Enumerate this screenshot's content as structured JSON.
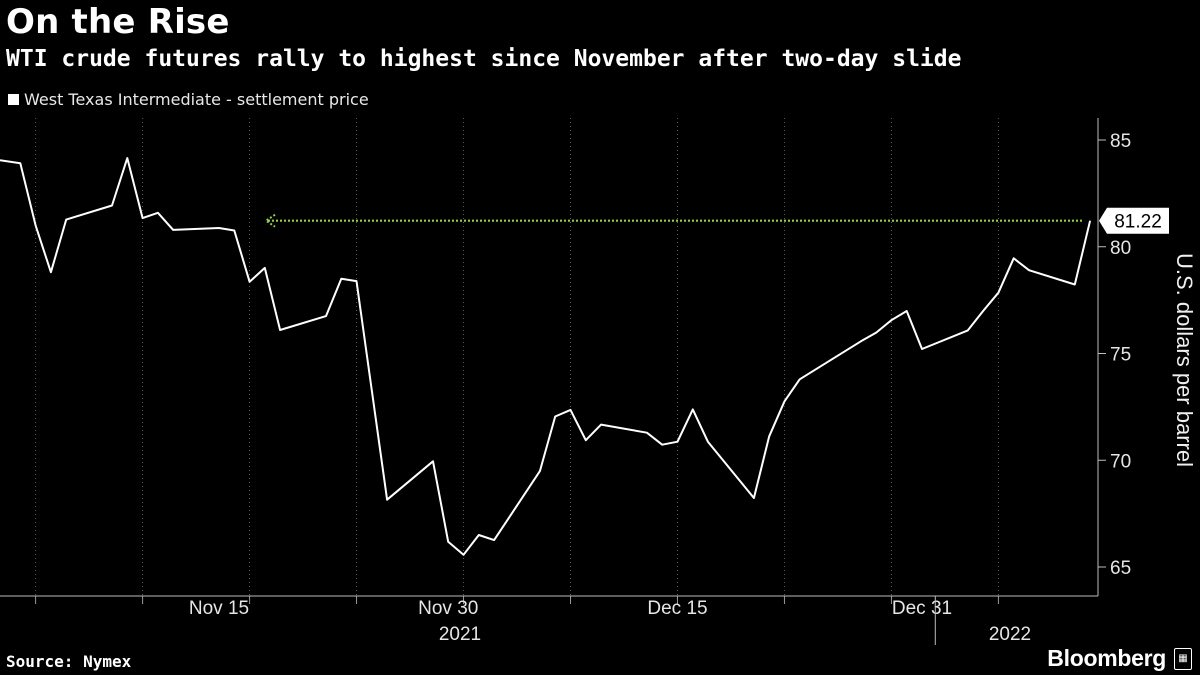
{
  "header": {
    "title": "On the Rise",
    "subtitle": "WTI crude futures rally to highest since November after two-day slide",
    "legend_label": "West Texas Intermediate - settlement price"
  },
  "footer": {
    "source": "Source: Nymex",
    "brand": "Bloomberg"
  },
  "colors": {
    "background": "#000000",
    "line": "#ffffff",
    "grid": "#5a5a5a",
    "dotted_arrow": "#8fd14f"
  },
  "chart_data": {
    "type": "line",
    "title": "On the Rise",
    "subtitle": "WTI crude futures rally to highest since November after two-day slide",
    "ylabel": "U.S. dollars per barrel",
    "xlabel": "",
    "ylim": [
      64,
      86
    ],
    "yticks": [
      65,
      70,
      75,
      80,
      85
    ],
    "grid": "vertical dotted",
    "x_tick_labels": [
      "Nov 15",
      "Nov 30",
      "Dec 15",
      "Dec 31"
    ],
    "year_labels": [
      "2021",
      "2022"
    ],
    "last_value_label": "81.22",
    "annotation": "dotted arrow from last value back to matching level in November",
    "series": [
      {
        "name": "West Texas Intermediate - settlement price",
        "x": [
          "2021-11-01",
          "2021-11-02",
          "2021-11-03",
          "2021-11-04",
          "2021-11-05",
          "2021-11-08",
          "2021-11-09",
          "2021-11-10",
          "2021-11-11",
          "2021-11-12",
          "2021-11-15",
          "2021-11-16",
          "2021-11-17",
          "2021-11-18",
          "2021-11-19",
          "2021-11-22",
          "2021-11-23",
          "2021-11-24",
          "2021-11-26",
          "2021-11-29",
          "2021-11-30",
          "2021-12-01",
          "2021-12-02",
          "2021-12-03",
          "2021-12-06",
          "2021-12-07",
          "2021-12-08",
          "2021-12-09",
          "2021-12-10",
          "2021-12-13",
          "2021-12-14",
          "2021-12-15",
          "2021-12-16",
          "2021-12-17",
          "2021-12-20",
          "2021-12-21",
          "2021-12-22",
          "2021-12-23",
          "2021-12-27",
          "2021-12-28",
          "2021-12-29",
          "2021-12-30",
          "2021-12-31",
          "2022-01-03",
          "2022-01-04",
          "2022-01-05",
          "2022-01-06",
          "2022-01-07",
          "2022-01-10",
          "2022-01-11"
        ],
        "values": [
          84.05,
          83.91,
          81.0,
          78.81,
          81.27,
          81.93,
          84.15,
          81.34,
          81.59,
          80.79,
          80.88,
          80.76,
          78.36,
          79.01,
          76.1,
          76.75,
          78.5,
          78.39,
          68.15,
          69.95,
          66.18,
          65.57,
          66.5,
          66.26,
          69.49,
          72.05,
          72.36,
          70.94,
          71.67,
          71.29,
          70.73,
          70.87,
          72.38,
          70.86,
          68.23,
          71.12,
          72.76,
          73.79,
          75.57,
          75.98,
          76.56,
          76.99,
          75.21,
          76.08,
          76.99,
          77.85,
          79.46,
          78.9,
          78.23,
          81.22
        ]
      }
    ]
  }
}
